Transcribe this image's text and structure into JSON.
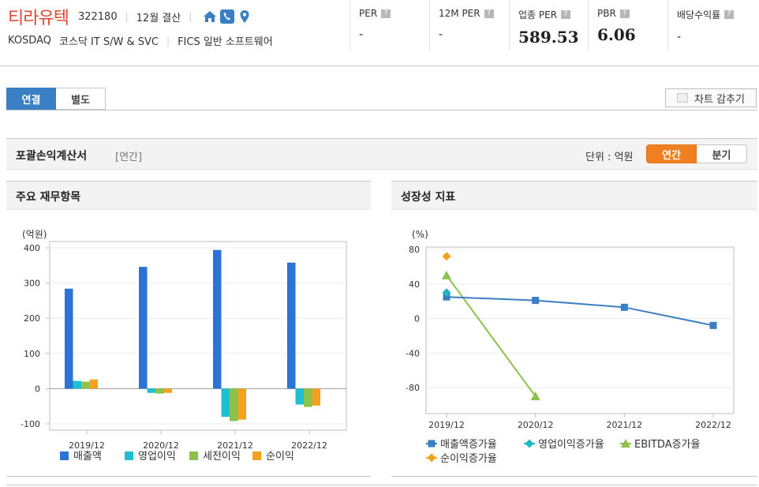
{
  "header": {
    "company_name": "티라유텍",
    "code": "322180",
    "settlement": "12월 결산",
    "market": "KOSDAQ",
    "sector": "코스닥 IT S/W & SVC",
    "fics": "FICS 일반 소프트웨어",
    "icons": [
      "home-icon",
      "phone-icon",
      "location-pin-icon"
    ],
    "metrics": [
      {
        "label": "PER",
        "value": "-"
      },
      {
        "label": "12M PER",
        "value": "-"
      },
      {
        "label": "업종 PER",
        "value": "589.53"
      },
      {
        "label": "PBR",
        "value": "6.06"
      },
      {
        "label": "배당수익률",
        "value": "-"
      }
    ]
  },
  "tabs": [
    {
      "label": "연결",
      "active": true
    },
    {
      "label": "별도",
      "active": false
    }
  ],
  "hide_chart_label": "차트 감추기",
  "section": {
    "title": "포괄손익계산서",
    "sub": "[연간]",
    "unit": "단위 : 억원",
    "period_buttons": [
      {
        "label": "연간",
        "active": true
      },
      {
        "label": "분기",
        "active": false
      }
    ]
  },
  "panels": {
    "left_title": "주요 재무항목",
    "right_title": "성장성 지표"
  },
  "chart_data": [
    {
      "type": "bar",
      "title": "주요 재무항목",
      "ylabel": "(억원)",
      "categories": [
        "2019/12",
        "2020/12",
        "2021/12",
        "2022/12"
      ],
      "ylim": [
        -100,
        400
      ],
      "yticks": [
        "400",
        "300",
        "200",
        "100",
        "0",
        "-100"
      ],
      "legend_placement": "bottom",
      "series": [
        {
          "name": "매출액",
          "color": "#2b73d6",
          "values": [
            284,
            346,
            394,
            358
          ]
        },
        {
          "name": "영업이익",
          "color": "#1fbfcf",
          "values": [
            22,
            -12,
            -80,
            -45
          ]
        },
        {
          "name": "세전이익",
          "color": "#8cc14c",
          "values": [
            20,
            -14,
            -92,
            -52
          ]
        },
        {
          "name": "순이익",
          "color": "#f4a21e",
          "values": [
            26,
            -12,
            -88,
            -48
          ]
        }
      ]
    },
    {
      "type": "line",
      "title": "성장성 지표",
      "ylabel": "(%)",
      "categories": [
        "2019/12",
        "2020/12",
        "2021/12",
        "2022/12"
      ],
      "ylim": [
        -100,
        80
      ],
      "yticks": [
        "80",
        "40",
        "0",
        "-40",
        "-80"
      ],
      "legend_placement": "bottom",
      "series": [
        {
          "name": "매출액증가율",
          "color": "#3a7fc4",
          "marker": "square",
          "values": [
            25,
            21,
            13,
            -8
          ]
        },
        {
          "name": "영업이익증가율",
          "color": "#1fb5c2",
          "marker": "diamond",
          "values": [
            30,
            null,
            null,
            null
          ]
        },
        {
          "name": "EBITDA증가율",
          "color": "#8cc14c",
          "marker": "triangle",
          "values": [
            50,
            -90,
            null,
            null
          ]
        },
        {
          "name": "순이익증가율",
          "color": "#f4a21e",
          "marker": "diamond",
          "values": [
            72,
            null,
            null,
            null
          ]
        }
      ]
    }
  ]
}
